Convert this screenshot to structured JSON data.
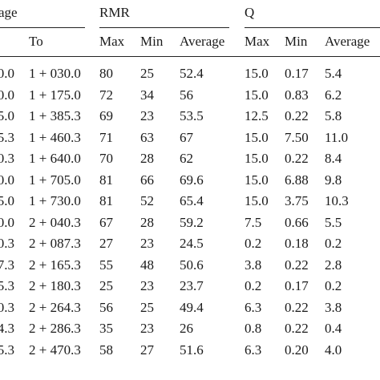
{
  "headers": {
    "chainage_partial": "age",
    "to": "To",
    "rmr": "RMR",
    "q": "Q",
    "max": "Max",
    "min": "Min",
    "average": "Average"
  },
  "rows": [
    {
      "from": "0.0",
      "to": "1 + 030.0",
      "rmr_max": "80",
      "rmr_min": "25",
      "rmr_avg": "52.4",
      "q_max": "15.0",
      "q_min": "0.17",
      "q_avg": "5.4"
    },
    {
      "from": "0.0",
      "to": "1 + 175.0",
      "rmr_max": "72",
      "rmr_min": "34",
      "rmr_avg": "56",
      "q_max": "15.0",
      "q_min": "0.83",
      "q_avg": "6.2"
    },
    {
      "from": "5.0",
      "to": "1 + 385.3",
      "rmr_max": "69",
      "rmr_min": "23",
      "rmr_avg": "53.5",
      "q_max": "12.5",
      "q_min": "0.22",
      "q_avg": "5.8"
    },
    {
      "from": "5.3",
      "to": "1 + 460.3",
      "rmr_max": "71",
      "rmr_min": "63",
      "rmr_avg": "67",
      "q_max": "15.0",
      "q_min": "7.50",
      "q_avg": "11.0"
    },
    {
      "from": "0.3",
      "to": "1 + 640.0",
      "rmr_max": "70",
      "rmr_min": "28",
      "rmr_avg": "62",
      "q_max": "15.0",
      "q_min": "0.22",
      "q_avg": "8.4"
    },
    {
      "from": "0.0",
      "to": "1 + 705.0",
      "rmr_max": "81",
      "rmr_min": "66",
      "rmr_avg": "69.6",
      "q_max": "15.0",
      "q_min": "6.88",
      "q_avg": "9.8"
    },
    {
      "from": "5.0",
      "to": "1 + 730.0",
      "rmr_max": "81",
      "rmr_min": "52",
      "rmr_avg": "65.4",
      "q_max": "15.0",
      "q_min": "3.75",
      "q_avg": "10.3"
    },
    {
      "from": "0.0",
      "to": "2 + 040.3",
      "rmr_max": "67",
      "rmr_min": "28",
      "rmr_avg": "59.2",
      "q_max": "7.5",
      "q_min": "0.66",
      "q_avg": "5.5"
    },
    {
      "from": "0.3",
      "to": "2 + 087.3",
      "rmr_max": "27",
      "rmr_min": "23",
      "rmr_avg": "24.5",
      "q_max": "0.2",
      "q_min": "0.18",
      "q_avg": "0.2"
    },
    {
      "from": "7.3",
      "to": "2 + 165.3",
      "rmr_max": "55",
      "rmr_min": "48",
      "rmr_avg": "50.6",
      "q_max": "3.8",
      "q_min": "0.22",
      "q_avg": "2.8"
    },
    {
      "from": "5.3",
      "to": "2 + 180.3",
      "rmr_max": "25",
      "rmr_min": "23",
      "rmr_avg": "23.7",
      "q_max": "0.2",
      "q_min": "0.17",
      "q_avg": "0.2"
    },
    {
      "from": "0.3",
      "to": "2 + 264.3",
      "rmr_max": "56",
      "rmr_min": "25",
      "rmr_avg": "49.4",
      "q_max": "6.3",
      "q_min": "0.22",
      "q_avg": "3.8"
    },
    {
      "from": "4.3",
      "to": "2 + 286.3",
      "rmr_max": "35",
      "rmr_min": "23",
      "rmr_avg": "26",
      "q_max": "0.8",
      "q_min": "0.22",
      "q_avg": "0.4"
    },
    {
      "from": "5.3",
      "to": "2 + 470.3",
      "rmr_max": "58",
      "rmr_min": "27",
      "rmr_avg": "51.6",
      "q_max": "6.3",
      "q_min": "0.20",
      "q_avg": "4.0"
    }
  ]
}
